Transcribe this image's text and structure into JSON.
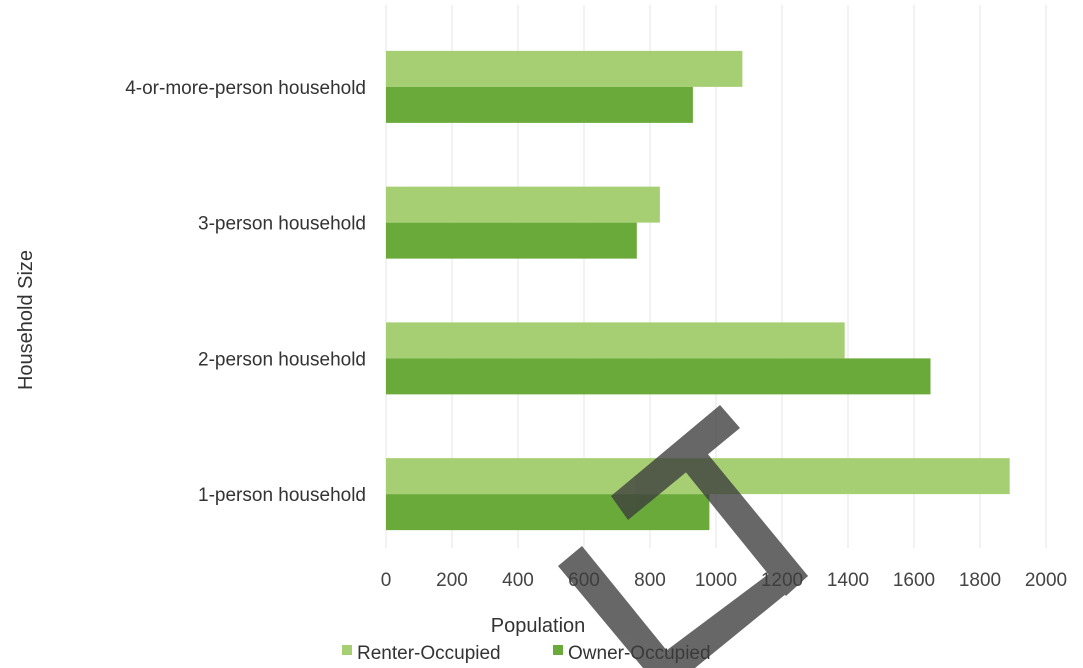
{
  "chart_data": {
    "type": "bar",
    "orientation": "horizontal",
    "categories": [
      "1-person household",
      "2-person household",
      "3-person household",
      "4-or-more-person household"
    ],
    "series": [
      {
        "name": "Renter-Occupied",
        "values": [
          1890,
          1390,
          830,
          1080
        ],
        "color": "#a6cf73"
      },
      {
        "name": "Owner-Occupied",
        "values": [
          980,
          1650,
          760,
          930
        ],
        "color": "#6aaa3a"
      }
    ],
    "xlabel": "Population",
    "ylabel": "Household Size",
    "xlim": [
      0,
      2000
    ],
    "xticks": [
      "0",
      "200",
      "400",
      "600",
      "800",
      "1000",
      "1200",
      "1400",
      "1600",
      "1800",
      "2000"
    ],
    "grid": "vertical",
    "legend_position": "bottom",
    "watermark_text": "ET"
  }
}
